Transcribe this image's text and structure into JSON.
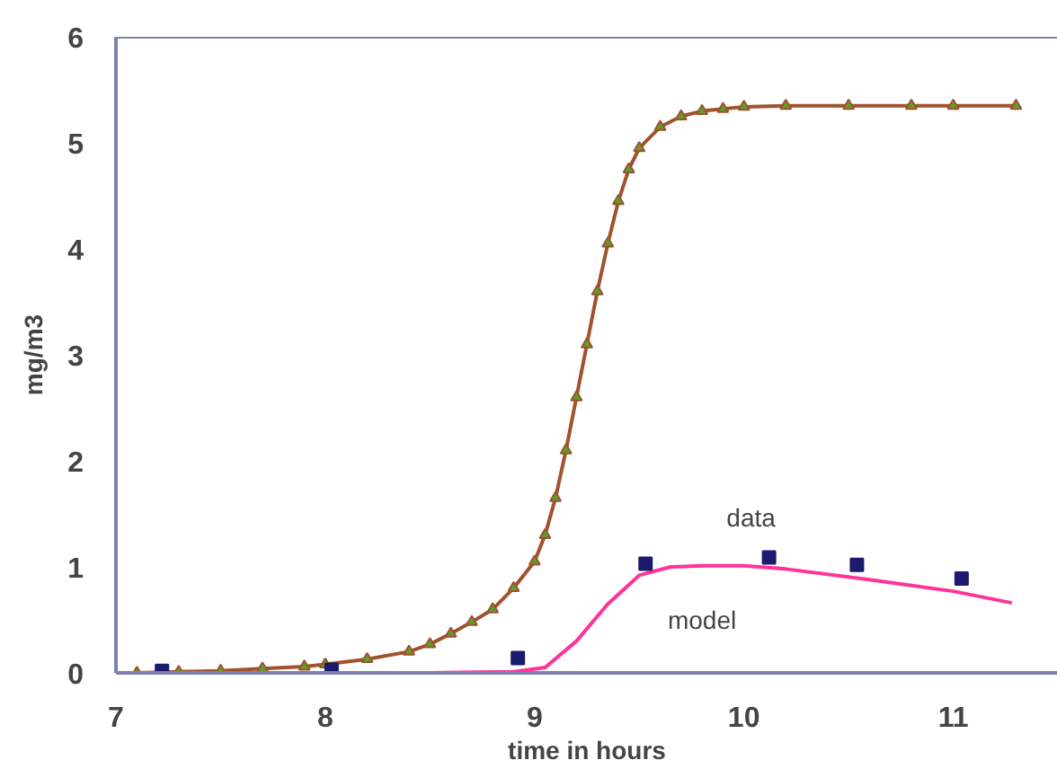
{
  "chart_data": {
    "type": "line",
    "xlabel": "time in hours",
    "ylabel": "mg/m3",
    "xlim": [
      7,
      11.5
    ],
    "ylim": [
      0,
      6
    ],
    "xticks": [
      7,
      8,
      9,
      10,
      11
    ],
    "yticks": [
      0,
      1,
      2,
      3,
      4,
      5,
      6
    ],
    "series": [
      {
        "marker": "triangle",
        "color": "#a0522d",
        "x": [
          7.1,
          7.3,
          7.5,
          7.7,
          7.9,
          8.0,
          8.2,
          8.4,
          8.5,
          8.6,
          8.7,
          8.8,
          8.9,
          9.0,
          9.05,
          9.1,
          9.15,
          9.2,
          9.25,
          9.3,
          9.35,
          9.4,
          9.45,
          9.5,
          9.6,
          9.7,
          9.8,
          9.9,
          10.0,
          10.2,
          10.5,
          10.8,
          11.0,
          11.3
        ],
        "values": [
          0.0,
          0.01,
          0.02,
          0.04,
          0.06,
          0.08,
          0.13,
          0.2,
          0.27,
          0.37,
          0.48,
          0.6,
          0.8,
          1.05,
          1.3,
          1.65,
          2.1,
          2.6,
          3.1,
          3.6,
          4.05,
          4.45,
          4.75,
          4.95,
          5.15,
          5.25,
          5.3,
          5.32,
          5.34,
          5.35,
          5.35,
          5.35,
          5.35,
          5.35
        ]
      },
      {
        "name": "model",
        "marker": "none",
        "color": "#ff3399",
        "x": [
          7.0,
          8.0,
          8.5,
          8.9,
          9.05,
          9.2,
          9.35,
          9.5,
          9.65,
          9.8,
          10.0,
          10.2,
          10.6,
          11.0,
          11.28
        ],
        "values": [
          0,
          0,
          0,
          0.01,
          0.05,
          0.3,
          0.65,
          0.92,
          1.0,
          1.01,
          1.01,
          0.98,
          0.88,
          0.77,
          0.66
        ]
      },
      {
        "name": "data",
        "type": "scatter",
        "marker": "square",
        "color": "#1a1a6e",
        "x": [
          7.22,
          8.03,
          8.92,
          9.53,
          10.12,
          10.54,
          11.04
        ],
        "values": [
          0.02,
          0.03,
          0.14,
          1.03,
          1.09,
          1.02,
          0.89
        ]
      }
    ]
  }
}
